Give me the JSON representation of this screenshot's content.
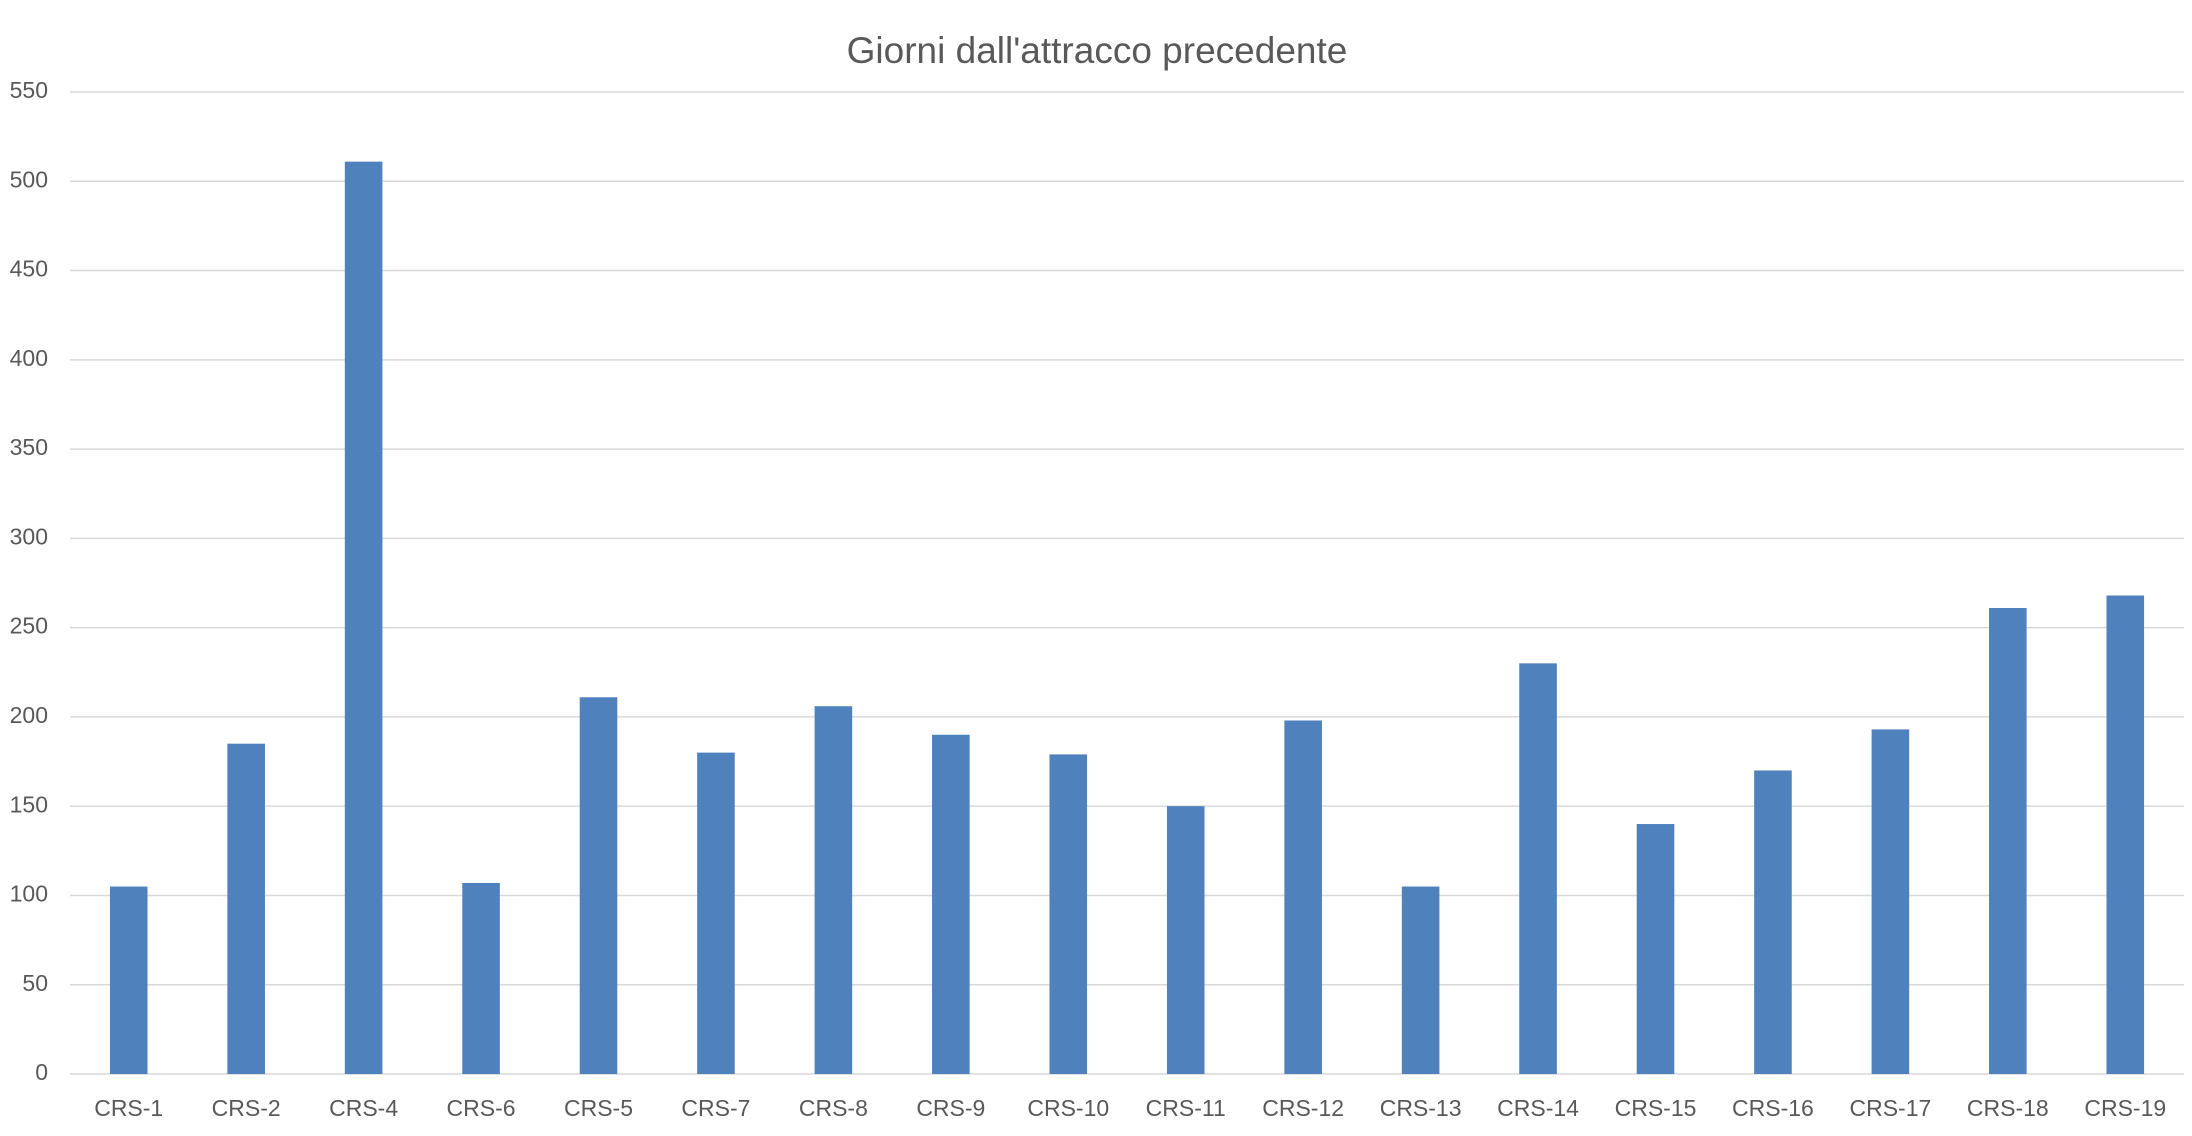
{
  "chart_data": {
    "type": "bar",
    "title": "Giorni dall'attracco precedente",
    "categories": [
      "CRS-1",
      "CRS-2",
      "CRS-4",
      "CRS-6",
      "CRS-5",
      "CRS-7",
      "CRS-8",
      "CRS-9",
      "CRS-10",
      "CRS-11",
      "CRS-12",
      "CRS-13",
      "CRS-14",
      "CRS-15",
      "CRS-16",
      "CRS-17",
      "CRS-18",
      "CRS-19"
    ],
    "values": [
      105,
      185,
      511,
      107,
      211,
      180,
      206,
      190,
      179,
      150,
      198,
      105,
      230,
      140,
      170,
      193,
      261,
      268
    ],
    "color": "#4f81bd",
    "ylim": [
      0,
      550
    ],
    "yticks": [
      0,
      50,
      100,
      150,
      200,
      250,
      300,
      350,
      400,
      450,
      500,
      550
    ],
    "grid": true
  }
}
